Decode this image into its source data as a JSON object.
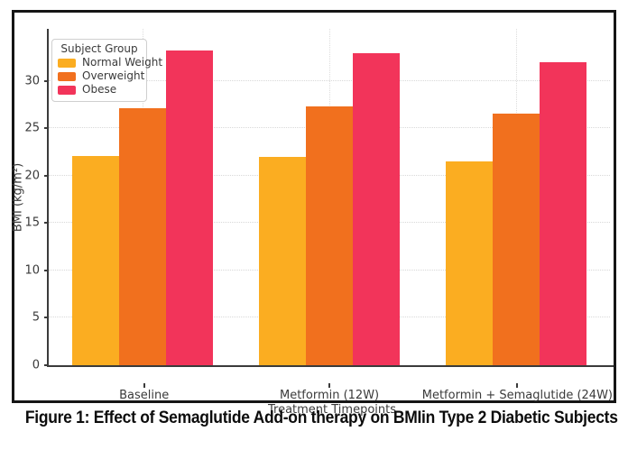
{
  "figure_caption": "Figure 1: Effect of Semaglutide Add-on therapy on BMIin Type 2 Diabetic Subjects",
  "chart_data": {
    "type": "bar",
    "title": "",
    "xlabel": "Treatment Timepoints",
    "ylabel": "BMI (kg/m²)",
    "categories": [
      "Baseline",
      "Metformin (12W)",
      "Metformin + Semaglutide (24W)"
    ],
    "series": [
      {
        "name": "Normal Weight",
        "color": "#FBAD21",
        "values": [
          22.1,
          22.0,
          21.5
        ]
      },
      {
        "name": "Overweight",
        "color": "#F1701E",
        "values": [
          27.1,
          27.3,
          26.6
        ]
      },
      {
        "name": "Obese",
        "color": "#F2345A",
        "values": [
          33.2,
          32.9,
          32.0
        ]
      }
    ],
    "ylim": [
      0,
      35.5
    ],
    "yticks": [
      0,
      5,
      10,
      15,
      20,
      25,
      30
    ],
    "grid": true,
    "grid_linestyle": "dotted",
    "legend": {
      "title": "Subject Group",
      "position": "upper left"
    }
  },
  "style": {
    "border_color": "#151515",
    "spine_color": "#3b3b3b",
    "grid_color": "#d8d8d8",
    "text_color": "#3a3a3a"
  }
}
